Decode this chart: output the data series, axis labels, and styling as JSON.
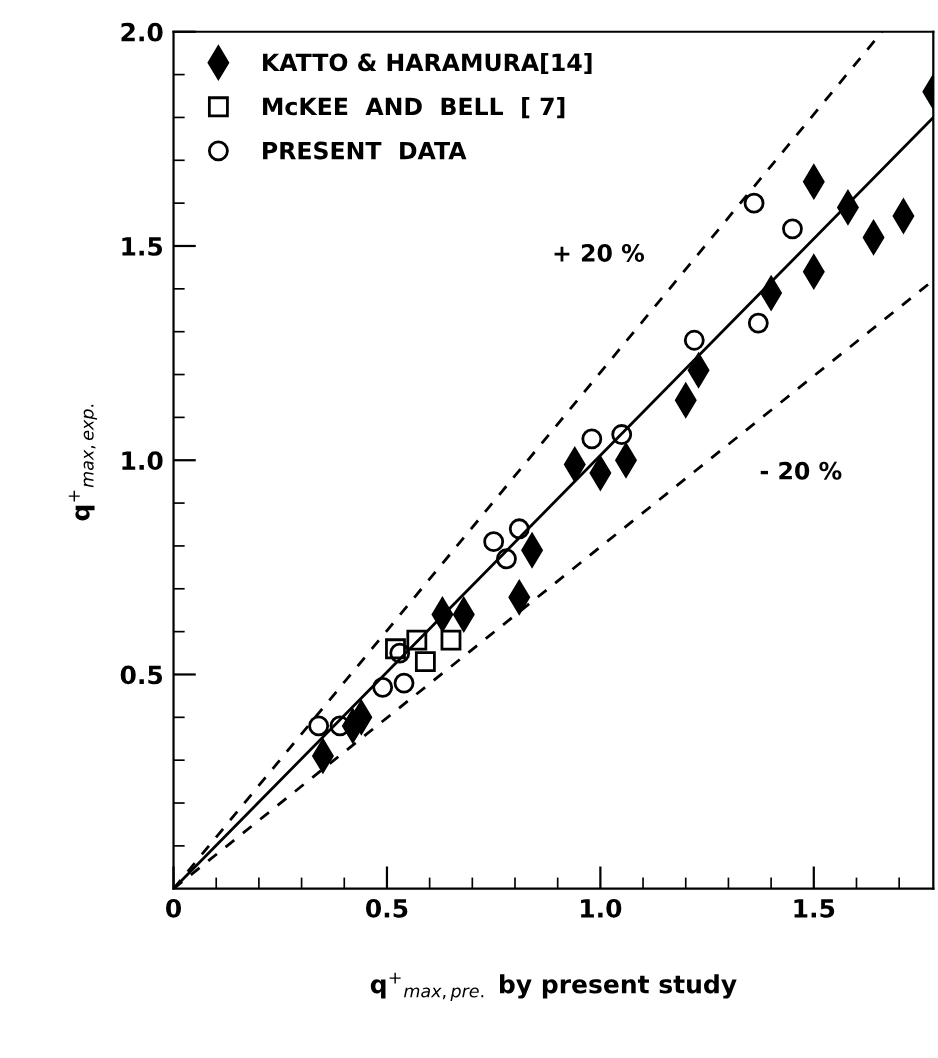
{
  "chart_data": {
    "type": "scatter",
    "xlabel": "q$^{+}$$_{max,pre.}$ by present study",
    "ylabel": "q$^{+}$$_{max,exp.}$",
    "xlim": [
      0,
      1.78
    ],
    "ylim": [
      0,
      2.0
    ],
    "xticks": [
      0,
      0.5,
      {
        "value": 1,
        "label": "1.0"
      },
      1.5,
      {
        "value": 0.1,
        "label": null
      },
      {
        "value": 0.2,
        "label": null
      },
      {
        "value": 0.3,
        "label": null
      },
      {
        "value": 0.4,
        "label": null
      },
      {
        "value": 0.6,
        "label": null
      },
      {
        "value": 0.7,
        "label": null
      },
      {
        "value": 0.8,
        "label": null
      },
      {
        "value": 0.9,
        "label": null
      },
      {
        "value": 1.1,
        "label": null
      },
      {
        "value": 1.2,
        "label": null
      },
      {
        "value": 1.3,
        "label": null
      },
      {
        "value": 1.4,
        "label": null
      },
      {
        "value": 1.6,
        "label": null
      },
      {
        "value": 1.7,
        "label": null
      }
    ],
    "yticks": [
      0.5,
      {
        "value": 1,
        "label": "1.0"
      },
      1.5,
      {
        "value": 2,
        "label": "2.0"
      },
      {
        "value": 0.1,
        "label": null
      },
      {
        "value": 0.2,
        "label": null
      },
      {
        "value": 0.3,
        "label": null
      },
      {
        "value": 0.4,
        "label": null
      },
      {
        "value": 0.6,
        "label": null
      },
      {
        "value": 0.7,
        "label": null
      },
      {
        "value": 0.8,
        "label": null
      },
      {
        "value": 0.9,
        "label": null
      },
      {
        "value": 1.1,
        "label": null
      },
      {
        "value": 1.2,
        "label": null
      },
      {
        "value": 1.3,
        "label": null
      },
      {
        "value": 1.4,
        "label": null
      },
      {
        "value": 1.6,
        "label": null
      },
      {
        "value": 1.7,
        "label": null
      },
      {
        "value": 1.8,
        "label": null
      },
      {
        "value": 1.9,
        "label": null
      }
    ],
    "legend": "top left",
    "grid": false,
    "series": [
      {
        "name": "KATTO & HARAMURA[14]",
        "color": "#000000",
        "marker": "diamond",
        "x": [
          1.78,
          1.5,
          1.58,
          1.64,
          1.71,
          1.5,
          1.4,
          1.23,
          1.2,
          0.94,
          1.0,
          1.06,
          0.63,
          0.68,
          0.81,
          0.84,
          0.44,
          0.42,
          0.35
        ],
        "values": [
          1.86,
          1.65,
          1.59,
          1.52,
          1.57,
          1.44,
          1.39,
          1.21,
          1.14,
          0.99,
          0.97,
          1.0,
          0.64,
          0.64,
          0.68,
          0.79,
          0.4,
          0.38,
          0.31
        ]
      },
      {
        "name": "McKEE  AND  BELL  [ 7]",
        "color": "#000000",
        "marker": "square",
        "x": [
          0.52,
          0.57,
          0.59,
          0.65
        ],
        "values": [
          0.56,
          0.58,
          0.53,
          0.58
        ]
      },
      {
        "name": "PRESENT  DATA",
        "color": "#000000",
        "marker": "circle",
        "x": [
          1.36,
          1.45,
          1.37,
          1.22,
          1.05,
          0.98,
          0.75,
          0.78,
          0.81,
          0.53,
          0.49,
          0.54,
          0.34,
          0.39
        ],
        "values": [
          1.6,
          1.54,
          1.32,
          1.28,
          1.06,
          1.05,
          0.81,
          0.77,
          0.84,
          0.55,
          0.47,
          0.48,
          0.38,
          0.38
        ]
      },
      {
        "type": "line",
        "name": "+ 20 %",
        "color": "#000000",
        "line_style": "dashed",
        "x": [
          0,
          1.66
        ],
        "values": [
          0,
          2.0
        ]
      },
      {
        "type": "line",
        "name": "- 20 %",
        "color": "#000000",
        "line_style": "dashed",
        "x": [
          0,
          1.78
        ],
        "values": [
          0,
          1.42
        ]
      },
      {
        "type": "line",
        "color": "#000000",
        "line_style": "solid",
        "x": [
          0,
          1.78
        ],
        "values": [
          0,
          1.8
        ]
      }
    ]
  }
}
